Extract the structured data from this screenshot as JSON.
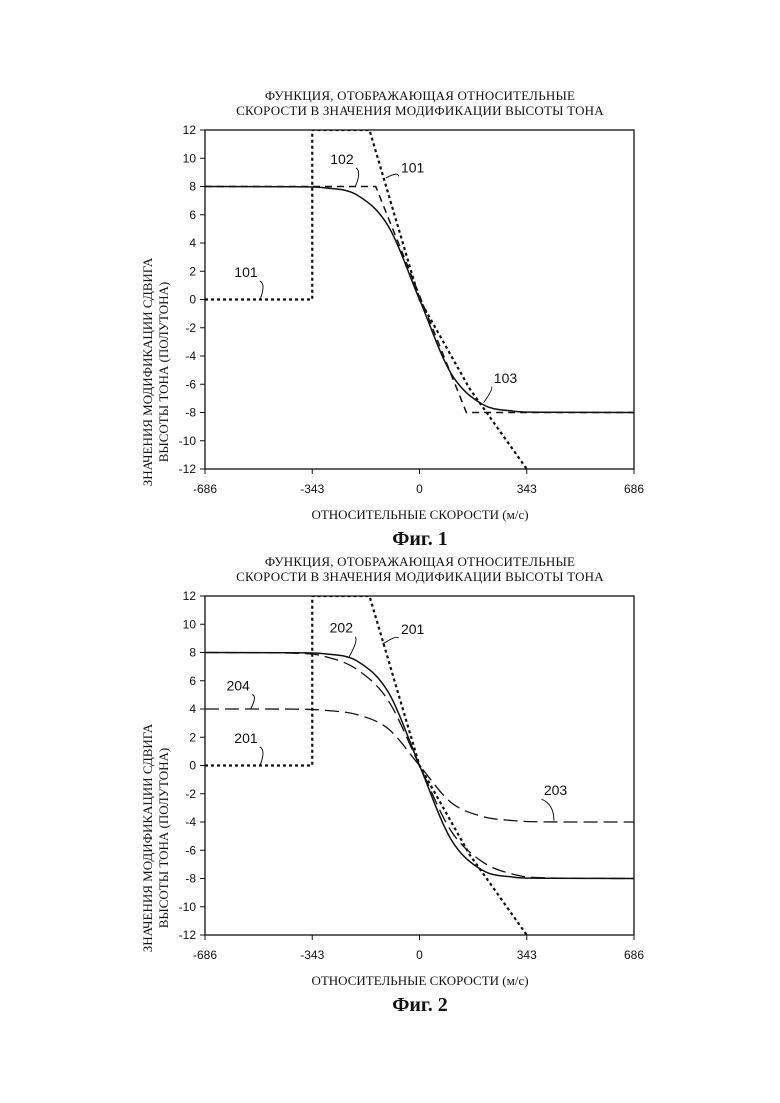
{
  "chart_data": [
    {
      "type": "line",
      "title_lines": [
        "ФУНКЦИЯ, ОТОБРАЖАЮЩАЯ ОТНОСИТЕЛЬНЫЕ",
        "СКОРОСТИ В ЗНАЧЕНИЯ МОДИФИКАЦИИ ВЫСОТЫ ТОНА"
      ],
      "ylabel_lines": [
        "ЗНАЧЕНИЯ МОДИФИКАЦИИ СДВИГА",
        "ВЫСОТЫ ТОНА (ПОЛУТОНА)"
      ],
      "xlabel": "ОТНОСИТЕЛЬНЫЕ СКОРОСТИ (м/с)",
      "caption": "Фиг. 1",
      "xlim": [
        -686,
        686
      ],
      "ylim": [
        -12,
        12
      ],
      "x_ticks": [
        "-686",
        "-343",
        "0",
        "343",
        "686"
      ],
      "x_tick_values": [
        -686,
        -343,
        0,
        343,
        686
      ],
      "y_ticks": [
        "12",
        "10",
        "8",
        "6",
        "4",
        "2",
        "0",
        "-2",
        "-4",
        "-6",
        "-8",
        "-10",
        "-12"
      ],
      "y_tick_values": [
        12,
        10,
        8,
        6,
        4,
        2,
        0,
        -2,
        -4,
        -6,
        -8,
        -10,
        -12
      ],
      "series": [
        {
          "style": "dotted",
          "x": [
            -686,
            -343,
            -343,
            -160,
            0,
            160,
            343
          ],
          "y": [
            0,
            0,
            12,
            12,
            0,
            -6.3,
            -12
          ]
        },
        {
          "style": "dashed",
          "x": [
            -686,
            -140,
            150,
            686
          ],
          "y": [
            8,
            8,
            -8,
            -8
          ]
        },
        {
          "style": "solid",
          "x": [
            -686,
            -400,
            -300,
            -200,
            -100,
            0,
            100,
            200,
            300,
            400,
            686
          ],
          "y": [
            8,
            7.98,
            7.9,
            7.4,
            5.2,
            0,
            -5.2,
            -7.4,
            -7.9,
            -7.98,
            -8
          ]
        }
      ],
      "annotations": [
        {
          "text": "101",
          "x": -555,
          "y": 1.6,
          "to_x": -510,
          "to_y": 0
        },
        {
          "text": "102",
          "x": -248,
          "y": 9.6,
          "to_x": -205,
          "to_y": 8
        },
        {
          "text": "101",
          "x": -22,
          "y": 9.0,
          "to_x": -108,
          "to_y": 8.6
        },
        {
          "text": "103",
          "x": 275,
          "y": -5.9,
          "to_x": 205,
          "to_y": -7.3
        }
      ]
    },
    {
      "type": "line",
      "title_lines": [
        "ФУНКЦИЯ, ОТОБРАЖАЮЩАЯ ОТНОСИТЕЛЬНЫЕ",
        "СКОРОСТИ В ЗНАЧЕНИЯ МОДИФИКАЦИИ ВЫСОТЫ ТОНА"
      ],
      "ylabel_lines": [
        "ЗНАЧЕНИЯ МОДИФИКАЦИИ СДВИГА",
        "ВЫСОТЫ ТОНА (ПОЛУТОНА)"
      ],
      "xlabel": "ОТНОСИТЕЛЬНЫЕ СКОРОСТИ (м/с)",
      "caption": "Фиг. 2",
      "xlim": [
        -686,
        686
      ],
      "ylim": [
        -12,
        12
      ],
      "x_ticks": [
        "-686",
        "-343",
        "0",
        "343",
        "686"
      ],
      "x_tick_values": [
        -686,
        -343,
        0,
        343,
        686
      ],
      "y_ticks": [
        "12",
        "10",
        "8",
        "6",
        "4",
        "2",
        "0",
        "-2",
        "-4",
        "-6",
        "-8",
        "-10",
        "-12"
      ],
      "y_tick_values": [
        12,
        10,
        8,
        6,
        4,
        2,
        0,
        -2,
        -4,
        -6,
        -8,
        -10,
        -12
      ],
      "series": [
        {
          "style": "dotted",
          "x": [
            -686,
            -343,
            -343,
            -160,
            0,
            160,
            343
          ],
          "y": [
            0,
            0,
            12,
            12,
            0,
            -6.3,
            -12
          ]
        },
        {
          "style": "solid",
          "x": [
            -686,
            -400,
            -300,
            -200,
            -100,
            0,
            100,
            200,
            300,
            400,
            686
          ],
          "y": [
            8,
            7.98,
            7.9,
            7.4,
            5.2,
            0,
            -5.2,
            -7.4,
            -7.9,
            -7.98,
            -8
          ]
        },
        {
          "style": "longdash",
          "x": [
            -686,
            -400,
            -300,
            -200,
            -100,
            0,
            100,
            200,
            300,
            400,
            686
          ],
          "y": [
            8,
            7.95,
            7.7,
            6.8,
            4.6,
            0,
            -4.6,
            -6.8,
            -7.7,
            -7.95,
            -8
          ]
        },
        {
          "style": "longdash",
          "x": [
            -686,
            -400,
            -300,
            -200,
            -100,
            0,
            100,
            200,
            300,
            400,
            686
          ],
          "y": [
            4,
            3.99,
            3.9,
            3.6,
            2.6,
            0,
            -2.6,
            -3.6,
            -3.9,
            -3.99,
            -4
          ]
        }
      ],
      "annotations": [
        {
          "text": "202",
          "x": -250,
          "y": 9.4,
          "to_x": -225,
          "to_y": 7.7
        },
        {
          "text": "201",
          "x": -22,
          "y": 9.3,
          "to_x": -118,
          "to_y": 8.6
        },
        {
          "text": "204",
          "x": -580,
          "y": 5.3,
          "to_x": -540,
          "to_y": 4
        },
        {
          "text": "201",
          "x": -555,
          "y": 1.6,
          "to_x": -510,
          "to_y": 0
        },
        {
          "text": "203",
          "x": 435,
          "y": -2.1,
          "to_x": 430,
          "to_y": -3.9
        }
      ]
    }
  ]
}
